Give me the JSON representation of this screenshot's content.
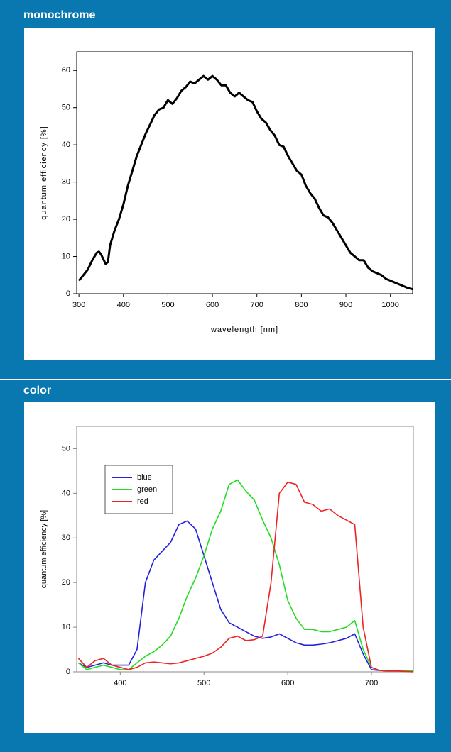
{
  "chart_data": [
    {
      "type": "line",
      "title": "monochrome",
      "x_label": "wavelength [nm]",
      "y_label": "quantum efficiency [%]",
      "color": "#000000",
      "grid": false,
      "x": [
        300,
        310,
        320,
        330,
        340,
        345,
        350,
        360,
        365,
        370,
        380,
        390,
        400,
        410,
        420,
        430,
        440,
        450,
        460,
        470,
        480,
        490,
        500,
        510,
        520,
        530,
        540,
        550,
        560,
        570,
        580,
        590,
        600,
        610,
        620,
        630,
        640,
        650,
        660,
        670,
        680,
        690,
        700,
        710,
        720,
        730,
        740,
        750,
        760,
        770,
        780,
        790,
        800,
        810,
        820,
        830,
        840,
        850,
        860,
        870,
        880,
        890,
        900,
        910,
        920,
        930,
        940,
        950,
        960,
        970,
        980,
        990,
        1000,
        1010,
        1020,
        1030,
        1040,
        1050
      ],
      "values": [
        3.5,
        5,
        6.5,
        9,
        11,
        11.3,
        10.5,
        8,
        8.5,
        13,
        17,
        20,
        24,
        29,
        33,
        37,
        40,
        43,
        45.5,
        48,
        49.5,
        50,
        52,
        51,
        52.5,
        54.5,
        55.5,
        57,
        56.5,
        57.5,
        58.5,
        57.5,
        58.5,
        57.5,
        56,
        56,
        54,
        53,
        54,
        53,
        52,
        51.5,
        49,
        47,
        46,
        44,
        42.5,
        40,
        39.5,
        37,
        35,
        33,
        32,
        29,
        27,
        25.5,
        23,
        21,
        20.5,
        19,
        17,
        15,
        13,
        11,
        10,
        9,
        9,
        7,
        6,
        5.5,
        5,
        4,
        3.5,
        3,
        2.5,
        2,
        1.5,
        1.2
      ],
      "xlim": [
        295,
        1050
      ],
      "ylim": [
        0,
        65
      ],
      "xticks": [
        300,
        400,
        500,
        600,
        700,
        800,
        900,
        1000
      ],
      "yticks": [
        0,
        10,
        20,
        30,
        40,
        50,
        60
      ]
    },
    {
      "type": "line",
      "title": "color",
      "y_label": "quantum efficiency [%]",
      "grid": false,
      "legend": "upper left",
      "x": [
        350,
        360,
        370,
        380,
        390,
        400,
        410,
        420,
        430,
        440,
        450,
        460,
        470,
        480,
        490,
        500,
        510,
        520,
        530,
        540,
        550,
        560,
        570,
        580,
        590,
        600,
        610,
        620,
        630,
        640,
        650,
        660,
        670,
        680,
        690,
        700,
        710,
        720,
        730,
        740,
        750
      ],
      "series": [
        {
          "name": "blue",
          "color": "#2222dd",
          "values": [
            2,
            1,
            1.5,
            2,
            1.5,
            1.5,
            1.5,
            5,
            20,
            25,
            27,
            29,
            33,
            33.8,
            32,
            26,
            20,
            14,
            11,
            10,
            9,
            8,
            7.5,
            7.8,
            8.5,
            7.5,
            6.5,
            6,
            6,
            6.2,
            6.5,
            7,
            7.5,
            8.5,
            4,
            0.5,
            0.3,
            0.2,
            0.2,
            0.2,
            0.2
          ]
        },
        {
          "name": "green",
          "color": "#22dd22",
          "values": [
            2,
            0.5,
            1,
            1.5,
            1,
            0.5,
            0.5,
            2,
            3.5,
            4.5,
            6,
            8,
            12,
            17,
            21,
            26,
            32,
            36,
            42,
            43,
            40.5,
            38.5,
            34,
            30,
            24,
            16,
            12,
            9.5,
            9.5,
            9,
            9,
            9.5,
            10,
            11.5,
            5,
            1,
            0.3,
            0.2,
            0.2,
            0.2,
            0.2
          ]
        },
        {
          "name": "red",
          "color": "#ee2222",
          "values": [
            3,
            1,
            2.5,
            3,
            1.5,
            1,
            0.5,
            1,
            2,
            2.2,
            2,
            1.8,
            2,
            2.5,
            3,
            3.5,
            4.2,
            5.5,
            7.5,
            8,
            7,
            7.2,
            8,
            20,
            40,
            42.5,
            42,
            38,
            37.5,
            36,
            36.5,
            35,
            34,
            33,
            10,
            1,
            0.3,
            0.2,
            0.2,
            0.1,
            0
          ]
        }
      ],
      "xlim": [
        348,
        750
      ],
      "ylim": [
        0,
        55
      ],
      "xticks": [
        400,
        500,
        600,
        700
      ],
      "yticks": [
        0,
        10,
        20,
        30,
        40,
        50
      ]
    }
  ]
}
